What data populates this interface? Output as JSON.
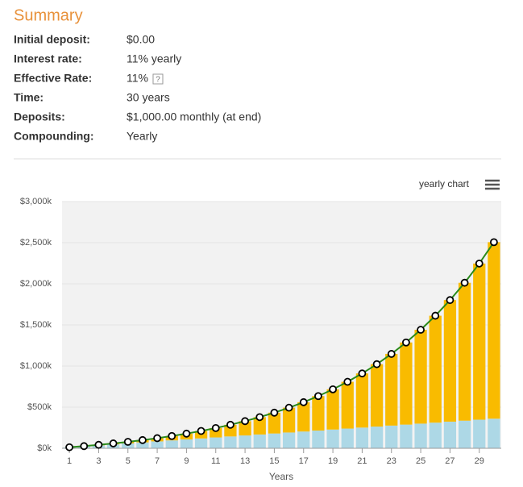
{
  "summary": {
    "title": "Summary",
    "rows": [
      {
        "label": "Initial deposit:",
        "value": "$0.00"
      },
      {
        "label": "Interest rate:",
        "value": "11% yearly"
      },
      {
        "label": "Effective Rate:",
        "value": "11%",
        "hint": "?"
      },
      {
        "label": "Time:",
        "value": "30 years"
      },
      {
        "label": "Deposits:",
        "value": "$1,000.00 monthly (at end)"
      },
      {
        "label": "Compounding:",
        "value": "Yearly"
      }
    ]
  },
  "chart_data": {
    "type": "bar",
    "stacked": true,
    "toolbar_label": "yearly chart",
    "x_label": "Years",
    "x": [
      1,
      2,
      3,
      4,
      5,
      6,
      7,
      8,
      9,
      10,
      11,
      12,
      13,
      14,
      15,
      16,
      17,
      18,
      19,
      20,
      21,
      22,
      23,
      24,
      25,
      26,
      27,
      28,
      29,
      30
    ],
    "xticks": [
      1,
      3,
      5,
      7,
      9,
      11,
      13,
      15,
      17,
      19,
      21,
      23,
      25,
      27,
      29
    ],
    "series": [
      {
        "color": "#add8e6",
        "values": [
          12000,
          24000,
          36000,
          48000,
          60000,
          72000,
          84000,
          96000,
          108000,
          120000,
          132000,
          144000,
          156000,
          168000,
          180000,
          192000,
          204000,
          216000,
          228000,
          240000,
          252000,
          264000,
          276000,
          288000,
          300000,
          312000,
          324000,
          336000,
          348000,
          360000
        ]
      },
      {
        "color": "#f9bb00",
        "values": [
          590,
          2570,
          6080,
          11320,
          18430,
          27650,
          39200,
          53360,
          70380,
          90590,
          114330,
          142050,
          174100,
          211020,
          253310,
          301530,
          356440,
          418680,
          489080,
          568550,
          658090,
          758780,
          871890,
          998740,
          1140870,
          1299960,
          1477870,
          1676660,
          1898640,
          2146370
        ]
      },
      {
        "type": "line",
        "color": "#2a8a1a",
        "values": [
          12590,
          26570,
          42080,
          59320,
          78430,
          99650,
          123200,
          149360,
          178380,
          210590,
          246330,
          286050,
          330100,
          379020,
          433310,
          493530,
          560440,
          634680,
          717080,
          808550,
          910090,
          1022780,
          1147890,
          1286740,
          1440870,
          1611960,
          1801870,
          2012660,
          2246640,
          2506370
        ]
      }
    ],
    "ylim": [
      0,
      3000000
    ],
    "yticks": [
      {
        "value": 0,
        "label": "$0k"
      },
      {
        "value": 500000,
        "label": "$500k"
      },
      {
        "value": 1000000,
        "label": "$1,000k"
      },
      {
        "value": 1500000,
        "label": "$1,500k"
      },
      {
        "value": 2000000,
        "label": "$2,000k"
      },
      {
        "value": 2500000,
        "label": "$2,500k"
      },
      {
        "value": 3000000,
        "label": "$3,000k"
      }
    ],
    "grid": true
  }
}
